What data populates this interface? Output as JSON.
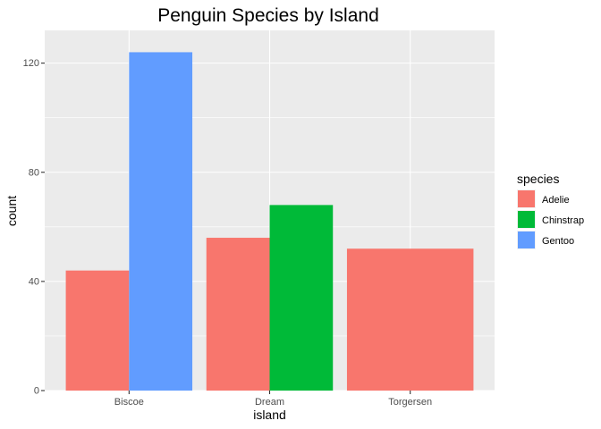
{
  "chart_data": {
    "type": "bar",
    "title": "Penguin Species by Island",
    "xlabel": "island",
    "ylabel": "count",
    "categories": [
      "Biscoe",
      "Dream",
      "Torgersen"
    ],
    "ylim": [
      0,
      132
    ],
    "yticks": [
      0,
      40,
      80,
      120
    ],
    "grid": true,
    "legend_position": "right",
    "legend_title": "species",
    "series": [
      {
        "name": "Adelie",
        "color": "#F8766D",
        "values": [
          44,
          56,
          52
        ]
      },
      {
        "name": "Chinstrap",
        "color": "#00BA38",
        "values": [
          0,
          68,
          0
        ]
      },
      {
        "name": "Gentoo",
        "color": "#619CFF",
        "values": [
          124,
          0,
          0
        ]
      }
    ]
  }
}
